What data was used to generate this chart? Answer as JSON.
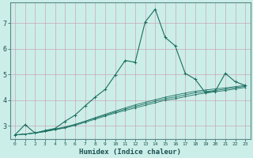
{
  "title": "",
  "xlabel": "Humidex (Indice chaleur)",
  "bg_color": "#cceee8",
  "grid_color": "#c8a8b8",
  "line_color": "#1a6e60",
  "xlim": [
    -0.5,
    23.5
  ],
  "ylim": [
    2.5,
    7.8
  ],
  "xticks": [
    0,
    1,
    2,
    3,
    4,
    5,
    6,
    7,
    8,
    9,
    10,
    11,
    12,
    13,
    14,
    15,
    16,
    17,
    18,
    19,
    20,
    21,
    22,
    23
  ],
  "yticks": [
    3,
    4,
    5,
    6,
    7
  ],
  "series": [
    [
      2.65,
      3.05,
      2.72,
      2.82,
      2.9,
      3.18,
      3.42,
      3.78,
      4.12,
      4.42,
      4.98,
      5.55,
      5.48,
      7.05,
      7.55,
      6.45,
      6.12,
      5.05,
      4.82,
      4.3,
      4.35,
      5.05,
      4.72,
      4.58
    ],
    [
      2.65,
      2.68,
      2.72,
      2.78,
      2.86,
      2.94,
      3.05,
      3.18,
      3.32,
      3.45,
      3.58,
      3.7,
      3.82,
      3.92,
      4.02,
      4.12,
      4.2,
      4.28,
      4.35,
      4.4,
      4.44,
      4.48,
      4.53,
      4.58
    ],
    [
      2.65,
      2.68,
      2.72,
      2.78,
      2.85,
      2.92,
      3.02,
      3.14,
      3.26,
      3.38,
      3.5,
      3.6,
      3.7,
      3.8,
      3.9,
      4.0,
      4.06,
      4.14,
      4.22,
      4.28,
      4.33,
      4.38,
      4.44,
      4.5
    ],
    [
      2.65,
      2.68,
      2.73,
      2.8,
      2.88,
      2.96,
      3.06,
      3.18,
      3.3,
      3.42,
      3.54,
      3.65,
      3.76,
      3.86,
      3.96,
      4.06,
      4.13,
      4.21,
      4.29,
      4.34,
      4.38,
      4.43,
      4.49,
      4.54
    ]
  ]
}
